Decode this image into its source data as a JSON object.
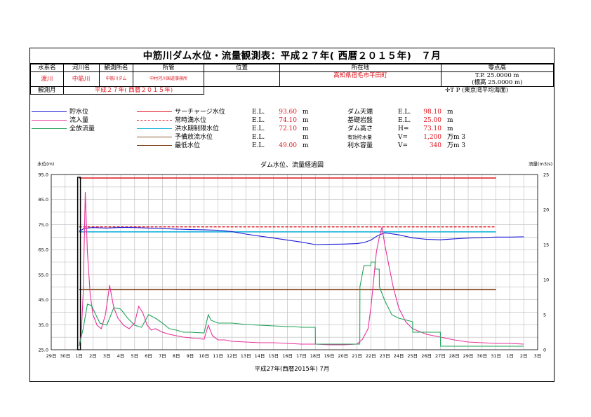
{
  "header": {
    "title": "中筋川ダム水位・流量観測表：平成２７年( 西暦２０１５年)　７月",
    "labels": {
      "water_system": "水系名",
      "river": "河川名",
      "office": "観測所名",
      "jurisdiction": "所管",
      "kind": "位置",
      "location": "所在地",
      "zero_elev": "零点高",
      "obs_month": "観測月"
    },
    "values": {
      "water_system": "渡川",
      "river": "中筋川",
      "office": "中筋川ダム",
      "jurisdiction": "中村河川国道事務所",
      "location": "高知県宿毛市平田町",
      "zero_elev_1": "T.P.  25.0000 m",
      "zero_elev_2": "(標高  25.0000 m)",
      "obs_month": "平成２７年( 西暦２０１５年)",
      "datum_note": "✢T P (東京湾平均海面)"
    }
  },
  "legend": [
    {
      "label": "貯水位",
      "color": "#1a1ad6",
      "style": "solid"
    },
    {
      "label": "流入量",
      "color": "#e8329c",
      "style": "solid"
    },
    {
      "label": "全放流量",
      "color": "#21a35a",
      "style": "solid"
    }
  ],
  "levels": [
    {
      "label": "サーチャージ水位",
      "el": "E.L.",
      "value": "93.60",
      "unit": "m",
      "color": "#e0151f",
      "style": "solid"
    },
    {
      "label": "常時満水位",
      "el": "E.L.",
      "value": "74.10",
      "unit": "m",
      "color": "#e0151f",
      "style": "dashed"
    },
    {
      "label": "洪水期制限水位",
      "el": "E.L.",
      "value": "72.10",
      "unit": "m",
      "color": "#19b4dc",
      "style": "solid"
    },
    {
      "label": "予備放流水位",
      "el": "E.L.",
      "value": "",
      "unit": "m",
      "color": "#8c5a2d",
      "style": "thin"
    },
    {
      "label": "最低水位",
      "el": "E.L.",
      "value": "49.00",
      "unit": "m",
      "color": "#7a3b10",
      "style": "solid"
    }
  ],
  "specs": [
    {
      "label": "ダム天端",
      "key": "E.L.",
      "value": "98.10",
      "unit": "m"
    },
    {
      "label": "基礎岩盤",
      "key": "E.L.",
      "value": "25.00",
      "unit": "m"
    },
    {
      "label": "ダム高さ",
      "key": "H=",
      "value": "73.10",
      "unit": "m"
    },
    {
      "label": "有効貯水量",
      "key": "V=",
      "value": "1,200",
      "unit": "万m 3"
    },
    {
      "label": "利水容量",
      "key": "V=",
      "value": "340",
      "unit": "万m 3"
    }
  ],
  "chart_data": {
    "type": "line",
    "title": "ダム水位、流量経過図",
    "ylabel": "水位(m)",
    "y2label": "流量(m3/s)",
    "xlabel": "平成27年(西暦2015年) 7月",
    "ylim": [
      25,
      95
    ],
    "y2lim": [
      0,
      25
    ],
    "yticks": [
      "25.0",
      "35.0",
      "45.0",
      "55.0",
      "65.0",
      "75.0",
      "85.0",
      "95.0"
    ],
    "y2ticks": [
      "0",
      "5",
      "10",
      "15",
      "20",
      "25"
    ],
    "xticks": [
      "29日",
      "30日",
      "1日",
      "2日",
      "3日",
      "4日",
      "5日",
      "6日",
      "7日",
      "8日",
      "9日",
      "10日",
      "11日",
      "12日",
      "13日",
      "14日",
      "15日",
      "16日",
      "17日",
      "18日",
      "19日",
      "20日",
      "21日",
      "22日",
      "23日",
      "24日",
      "25日",
      "26日",
      "27日",
      "28日",
      "29日",
      "30日",
      "31日",
      "1日",
      "2日",
      "3日"
    ],
    "xrange_days": [
      -2,
      33
    ],
    "reference_lines": [
      {
        "name": "サーチャージ水位",
        "y": 93.6
      },
      {
        "name": "常時満水位",
        "y": 74.1
      },
      {
        "name": "洪水期制限水位",
        "y": 72.1
      },
      {
        "name": "最低水位",
        "y": 49.0
      }
    ],
    "series": [
      {
        "name": "貯水位",
        "axis": "left",
        "x": [
          0,
          0.4,
          1,
          2,
          3,
          4,
          5,
          6,
          7,
          8,
          9,
          10,
          11,
          12,
          13,
          14,
          15,
          16,
          17,
          18,
          19,
          20,
          20.5,
          21,
          21.5,
          22,
          23,
          24,
          25,
          26,
          27,
          28,
          29,
          30,
          31,
          32
        ],
        "y": [
          72.3,
          73.5,
          73.8,
          73.6,
          73.9,
          73.8,
          73.6,
          73.4,
          73.2,
          73.0,
          72.9,
          72.7,
          72.2,
          71.2,
          70.4,
          69.6,
          68.8,
          68.0,
          67.0,
          67.1,
          67.2,
          67.4,
          67.8,
          68.8,
          70.6,
          71.7,
          70.9,
          69.7,
          69.1,
          68.9,
          69.3,
          69.6,
          69.8,
          70.0,
          70.0,
          70.1
        ]
      },
      {
        "name": "流入量",
        "axis": "right",
        "x": [
          0,
          0.15,
          0.3,
          0.45,
          0.6,
          0.8,
          1.0,
          1.3,
          1.6,
          1.9,
          2.2,
          2.5,
          2.8,
          3.2,
          3.6,
          4.0,
          4.3,
          4.6,
          4.9,
          5.2,
          5.5,
          6.0,
          6.5,
          7.0,
          7.5,
          8.0,
          8.5,
          9.0,
          9.3,
          9.6,
          10.0,
          10.5,
          11,
          12,
          13,
          14,
          15,
          16,
          17,
          18,
          19,
          20,
          20.4,
          20.8,
          21.0,
          21.2,
          21.4,
          21.6,
          21.8,
          22.0,
          22.3,
          22.6,
          23.0,
          23.5,
          24,
          25,
          26,
          27,
          28,
          29,
          30,
          31,
          32
        ],
        "y": [
          0.5,
          2.0,
          8.0,
          22.5,
          14.0,
          8.0,
          5.0,
          3.5,
          3.0,
          5.0,
          9.2,
          6.0,
          4.5,
          3.5,
          3.0,
          3.8,
          6.2,
          5.2,
          3.5,
          2.8,
          3.0,
          2.5,
          2.2,
          2.0,
          1.8,
          1.7,
          1.6,
          1.5,
          3.5,
          2.0,
          1.4,
          1.4,
          1.2,
          1.1,
          1.0,
          1.0,
          0.9,
          0.8,
          0.8,
          0.7,
          0.7,
          0.8,
          1.5,
          3.0,
          6.0,
          10.0,
          14.0,
          16.0,
          17.5,
          15.0,
          12.0,
          9.0,
          6.0,
          4.0,
          3.0,
          2.2,
          1.8,
          1.4,
          1.1,
          1.0,
          0.9,
          0.9,
          0.8
        ]
      },
      {
        "name": "全放流量",
        "axis": "right",
        "x": [
          0,
          0.3,
          0.6,
          0.9,
          1.2,
          1.5,
          2.0,
          2.5,
          3.0,
          3.5,
          4.0,
          4.5,
          5.0,
          5.5,
          6.0,
          6.5,
          7.0,
          7.5,
          8.0,
          9.0,
          9.3,
          9.5,
          10.0,
          10.5,
          11.0,
          12.0,
          13.0,
          14.0,
          15.0,
          15.5,
          16.0,
          17.0,
          17.01,
          18.0,
          19.0,
          20.0,
          20.2,
          20.21,
          20.5,
          21.0,
          21.01,
          21.3,
          21.31,
          21.6,
          21.61,
          22.0,
          22.5,
          23.0,
          24.0,
          24.01,
          25.0,
          26.0,
          26.01,
          27.0,
          28.0,
          29.0,
          30.0,
          31.0,
          32.0
        ],
        "y": [
          0.5,
          3.0,
          6.5,
          6.3,
          5.0,
          3.8,
          3.5,
          6.0,
          5.8,
          4.5,
          3.5,
          3.2,
          5.0,
          4.5,
          3.8,
          3.0,
          2.8,
          2.5,
          2.5,
          2.4,
          5.0,
          4.2,
          3.8,
          3.8,
          3.8,
          3.6,
          3.5,
          3.4,
          3.3,
          3.3,
          3.2,
          3.2,
          0.8,
          0.8,
          0.8,
          0.8,
          0.8,
          9.0,
          12.0,
          12.0,
          12.5,
          12.5,
          11.5,
          11.5,
          9.0,
          7.0,
          5.0,
          4.5,
          4.0,
          2.5,
          2.5,
          2.5,
          0.5,
          0.5,
          0.5,
          0.5,
          0.5,
          0.5,
          0.5
        ]
      }
    ]
  }
}
